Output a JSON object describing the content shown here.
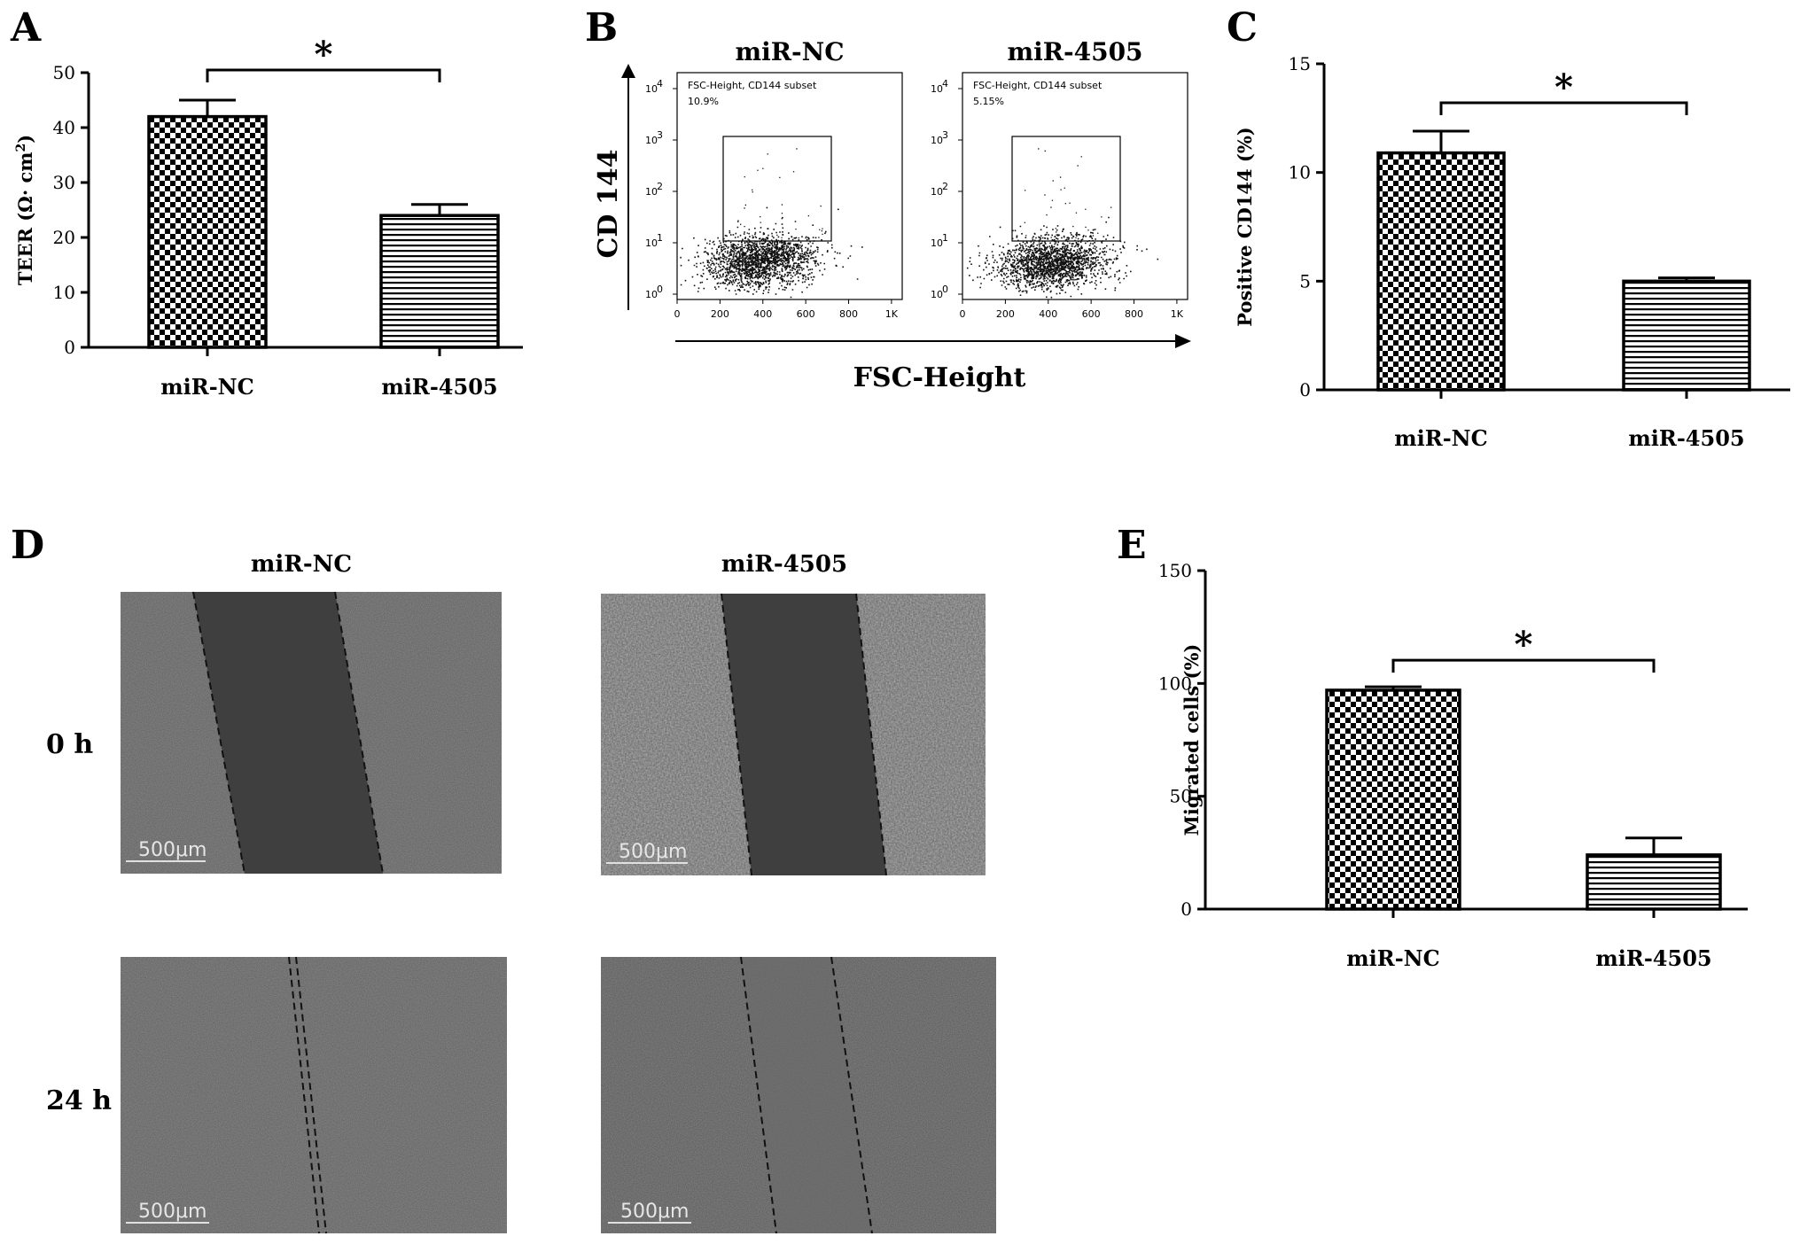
{
  "panel_labels": {
    "A": "A",
    "B": "B",
    "C": "C",
    "D": "D",
    "E": "E"
  },
  "colors": {
    "bar_edge": "#000000",
    "axis": "#000000",
    "image_gray": "#5e5e5e",
    "wound_gray": "#414141"
  },
  "chart_data": [
    {
      "id": "A",
      "type": "bar",
      "ylabel": "TEER (Ω· cm²)",
      "ylabel_main": "TEER (Ω· cm",
      "ylabel_sup": "2",
      "ylabel_end": ")",
      "categories": [
        "miR-NC",
        "miR-4505"
      ],
      "values": [
        42,
        24
      ],
      "errors": [
        3,
        2
      ],
      "patterns": [
        "checker",
        "hstripe"
      ],
      "ylim": [
        0,
        50
      ],
      "yticks": [
        0,
        10,
        20,
        30,
        40,
        50
      ],
      "ytick_labels": [
        "0",
        "10",
        "20",
        "30",
        "40",
        "50"
      ],
      "significance": "*"
    },
    {
      "id": "C",
      "type": "bar",
      "ylabel": "Positive CD144 (%)",
      "categories": [
        "miR-NC",
        "miR-4505"
      ],
      "values": [
        10.9,
        5.0
      ],
      "errors": [
        1.0,
        0.15
      ],
      "patterns": [
        "checker",
        "hstripe"
      ],
      "ylim": [
        0,
        15
      ],
      "yticks": [
        0,
        5,
        10,
        15
      ],
      "ytick_labels": [
        "0",
        "5",
        "10",
        "15"
      ],
      "significance": "*"
    },
    {
      "id": "E",
      "type": "bar",
      "ylabel": "Migrated cells (%)",
      "categories": [
        "miR-NC",
        "miR-4505"
      ],
      "values": [
        97,
        24
      ],
      "errors": [
        1.5,
        7.5
      ],
      "patterns": [
        "checker",
        "hstripe"
      ],
      "ylim": [
        0,
        150
      ],
      "yticks": [
        0,
        50,
        100,
        150
      ],
      "ytick_labels": [
        "0",
        "50",
        "100",
        "150"
      ],
      "significance": "*"
    },
    {
      "id": "B",
      "type": "scatter",
      "xlabel": "FSC-Height",
      "ylabel": "CD 144",
      "xticks": [
        0,
        200,
        400,
        600,
        800,
        1000
      ],
      "xtick_labels": [
        "0",
        "200",
        "400",
        "600",
        "800",
        "1K"
      ],
      "yscale": "log",
      "yticks": [
        "10",
        "10",
        "10",
        "10",
        "10"
      ],
      "ytick_exponents": [
        "0",
        "1",
        "2",
        "3",
        "4"
      ],
      "plots": [
        {
          "title": "miR-NC",
          "gate_name": "FSC-Height, CD144 subset",
          "gate_value": "10.9%"
        },
        {
          "title": "miR-4505",
          "gate_name": "FSC-Height, CD144 subset",
          "gate_value": "5.15%"
        }
      ]
    }
  ],
  "panel_D": {
    "columns": [
      "miR-NC",
      "miR-4505"
    ],
    "rows": [
      "0 h",
      "24 h"
    ],
    "scale_bar": "500μm"
  }
}
